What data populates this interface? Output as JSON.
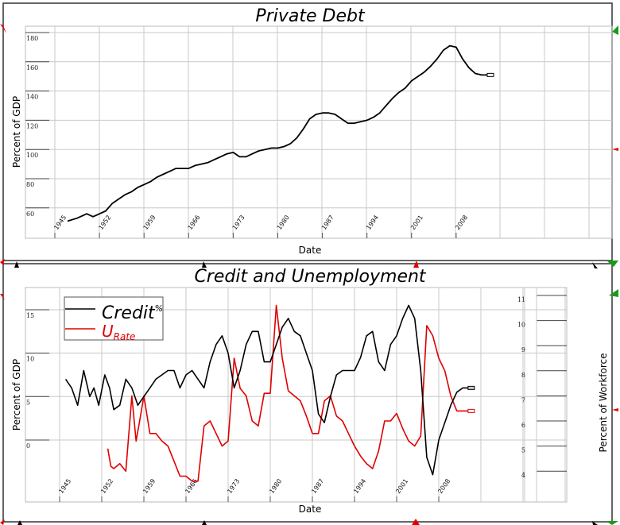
{
  "chart_data": [
    {
      "type": "line",
      "title": "Private Debt",
      "xlabel": "Date",
      "ylabel": "Percent of GDP",
      "ylim": [
        40,
        190
      ],
      "yticks": [
        60,
        80,
        100,
        120,
        140,
        160,
        180
      ],
      "xticks": [
        "1945",
        "1952",
        "1959",
        "1966",
        "1973",
        "1980",
        "1987",
        "1994",
        "2001",
        "2008"
      ],
      "grid": true,
      "series": [
        {
          "name": "Private Debt",
          "color": "#000000",
          "x": [
            1947,
            1948.5,
            1950,
            1951,
            1952,
            1953,
            1954,
            1955,
            1956,
            1957,
            1958,
            1959,
            1960,
            1961,
            1962,
            1963,
            1964,
            1965,
            1966,
            1967,
            1968,
            1969,
            1970,
            1971,
            1972,
            1973,
            1974,
            1975,
            1976,
            1977,
            1978,
            1979,
            1980,
            1981,
            1982,
            1983,
            1984,
            1985,
            1986,
            1987,
            1988,
            1989,
            1990,
            1991,
            1992,
            1993,
            1994,
            1995,
            1996,
            1997,
            1998,
            1999,
            2000,
            2001,
            2002,
            2003,
            2004,
            2005,
            2006,
            2007,
            2008,
            2009,
            2010,
            2011,
            2012,
            2013
          ],
          "values": [
            51,
            53,
            56,
            54,
            56,
            58,
            63,
            66,
            69,
            71,
            74,
            76,
            78,
            81,
            83,
            85,
            87,
            87,
            87,
            89,
            90,
            91,
            93,
            95,
            97,
            98,
            95,
            95,
            97,
            99,
            100,
            101,
            101,
            102,
            104,
            108,
            114,
            121,
            124,
            125,
            125,
            124,
            121,
            118,
            118,
            119,
            120,
            122,
            125,
            130,
            135,
            139,
            142,
            147,
            150,
            153,
            157,
            162,
            168,
            171,
            170,
            162,
            156,
            152,
            151,
            151
          ]
        }
      ]
    },
    {
      "type": "line",
      "title": "Credit and Unemployment",
      "xlabel": "Date",
      "ylabel": "Percent of GDP",
      "ylabel_right": "Percent of Workforce",
      "ylim": [
        -4,
        17
      ],
      "yticks": [
        0,
        5,
        10,
        15
      ],
      "ylim_right": [
        3,
        11.5
      ],
      "yticks_right": [
        4,
        5,
        6,
        7,
        8,
        9,
        10,
        11
      ],
      "xticks": [
        "1945",
        "1952",
        "1959",
        "1966",
        "1973",
        "1980",
        "1987",
        "1994",
        "2001",
        "2008"
      ],
      "grid": true,
      "legend": {
        "position": "upper left",
        "entries": [
          "Credit%",
          "U_Rate"
        ]
      },
      "series": [
        {
          "name": "Credit%",
          "axis": "left",
          "color": "#000000",
          "x": [
            1946,
            1947,
            1948,
            1949,
            1950,
            1950.7,
            1951.5,
            1952.5,
            1953.3,
            1954,
            1955,
            1956,
            1957,
            1958,
            1959,
            1960,
            1961,
            1962,
            1963,
            1964,
            1965,
            1966,
            1967,
            1968,
            1969,
            1970,
            1971,
            1972,
            1973,
            1974,
            1975,
            1976,
            1977,
            1978,
            1979,
            1980,
            1981,
            1982,
            1983,
            1984,
            1985,
            1986,
            1987,
            1988,
            1989,
            1990,
            1991,
            1992,
            1993,
            1994,
            1995,
            1996,
            1997,
            1998,
            1999,
            2000,
            2001,
            2002,
            2003,
            2004,
            2005,
            2006,
            2007,
            2008,
            2009,
            2010,
            2011,
            2012,
            2013
          ],
          "values": [
            7,
            6,
            4,
            8,
            5,
            6,
            4,
            7.5,
            6,
            3.5,
            4,
            7,
            6,
            4,
            5,
            6,
            7,
            7.5,
            8,
            8,
            6,
            7.5,
            8,
            7,
            6,
            9,
            11,
            12,
            10,
            6,
            8,
            11,
            12.5,
            12.5,
            9,
            9,
            11,
            13,
            14,
            12.5,
            12,
            10,
            8,
            3,
            2,
            5,
            7.5,
            8,
            8,
            8,
            9.5,
            12,
            12.5,
            9,
            8,
            11,
            12,
            14,
            15.5,
            14,
            8,
            -2,
            -4,
            0,
            2,
            4,
            5.5,
            6,
            6
          ]
        },
        {
          "name": "U_Rate",
          "axis": "right",
          "color": "#e00000",
          "x": [
            1953,
            1953.5,
            1954,
            1955,
            1956,
            1957,
            1957.7,
            1958.3,
            1959,
            1960,
            1961,
            1962,
            1963,
            1964,
            1965,
            1966,
            1967,
            1968,
            1969,
            1970,
            1971,
            1972,
            1973,
            1974,
            1975,
            1976,
            1977,
            1978,
            1979,
            1980,
            1981,
            1982,
            1983,
            1984,
            1985,
            1986,
            1987,
            1988,
            1989,
            1990,
            1991,
            1992,
            1993,
            1994,
            1995,
            1996,
            1997,
            1998,
            1999,
            2000,
            2001,
            2002,
            2003,
            2004,
            2005,
            2006,
            2007,
            2008,
            2009,
            2010,
            2011,
            2012,
            2013
          ],
          "values": [
            4.9,
            4.2,
            4.1,
            4.3,
            4.0,
            7.0,
            5.2,
            6.0,
            7.0,
            5.5,
            5.5,
            5.2,
            5.0,
            4.4,
            3.8,
            3.8,
            3.6,
            3.6,
            5.8,
            6.0,
            5.5,
            5.0,
            5.2,
            8.5,
            7.3,
            7.0,
            6.0,
            5.8,
            7.1,
            7.1,
            10.6,
            8.5,
            7.2,
            7.0,
            6.8,
            6.2,
            5.5,
            5.5,
            6.8,
            7.0,
            6.2,
            6.0,
            5.5,
            5.0,
            4.6,
            4.3,
            4.1,
            4.8,
            6.0,
            6.0,
            6.3,
            5.7,
            5.2,
            5.0,
            5.4,
            9.8,
            9.4,
            8.5,
            8.0,
            7.0,
            6.4,
            6.4,
            6.4
          ]
        }
      ]
    }
  ],
  "panels": {
    "top": {
      "title": "Private Debt",
      "xlabel": "Date",
      "ylabel": "Percent of GDP"
    },
    "bottom": {
      "title": "Credit and Unemployment",
      "xlabel": "Date",
      "ylabel": "Percent of GDP",
      "ylabel_right": "Percent of Workforce",
      "legend_credit": "Credit",
      "legend_credit_sup": "%",
      "legend_urate": "U",
      "legend_urate_sub": "Rate"
    }
  },
  "colors": {
    "credit": "#000000",
    "urate": "#e00000",
    "grid": "#c8c8c8",
    "handle_red": "#e00000",
    "handle_green": "#1a9a1a",
    "handle_black": "#000000"
  }
}
